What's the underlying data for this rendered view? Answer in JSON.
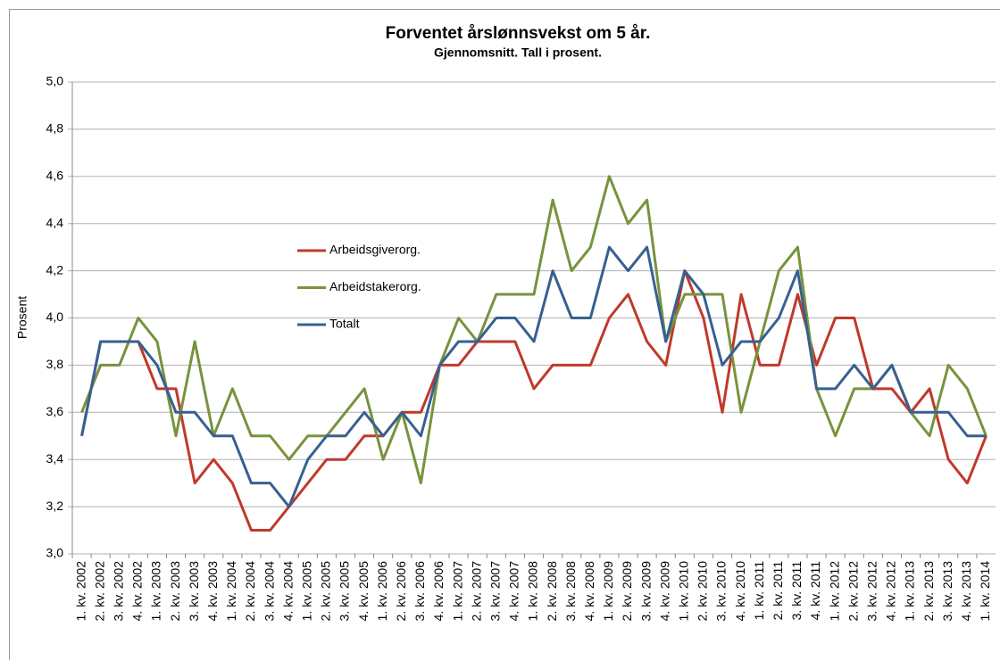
{
  "chart_data": {
    "type": "line",
    "title": "Forventet årslønnsvekst om 5 år.",
    "subtitle": "Gjennomsnitt.  Tall i prosent.",
    "y_label": "Prosent",
    "categories": [
      "1. kv. 2002",
      "2. kv. 2002",
      "3. kv. 2002",
      "4. kv. 2002",
      "1. kv. 2003",
      "2. kv. 2003",
      "3. kv. 2003",
      "4. kv. 2003",
      "1. kv. 2004",
      "2. kv. 2004",
      "3. kv. 2004",
      "4. kv. 2004",
      "1. kv. 2005",
      "2. kv. 2005",
      "3. kv. 2005",
      "4. kv. 2005",
      "1. kv. 2006",
      "2. kv. 2006",
      "3. kv. 2006",
      "4. kv. 2006",
      "1. kv. 2007",
      "2. kv. 2007",
      "3. kv. 2007",
      "4. kv. 2007",
      "1. kv. 2008",
      "2. kv. 2008",
      "3. kv. 2008",
      "4. kv. 2008",
      "1. kv. 2009",
      "2. kv. 2009",
      "3. kv. 2009",
      "4. kv. 2009",
      "1. kv. 2010",
      "2. kv. 2010",
      "3. kv. 2010",
      "4. kv. 2010",
      "1. kv. 2011",
      "2. kv. 2011",
      "3. kv. 2011",
      "4. kv. 2011",
      "1. kv. 2012",
      "2. kv. 2012",
      "3. kv. 2012",
      "4. kv. 2012",
      "1. kv. 2013",
      "2. kv. 2013",
      "3. kv. 2013",
      "4. kv. 2013",
      "1. kv. 2014"
    ],
    "series": [
      {
        "name": "Arbeidsgiverorg.",
        "color": "#c0392b",
        "values": [
          3.5,
          3.9,
          3.9,
          3.9,
          3.7,
          3.7,
          3.3,
          3.4,
          3.3,
          3.1,
          3.1,
          3.2,
          3.3,
          3.4,
          3.4,
          3.5,
          3.5,
          3.6,
          3.6,
          3.8,
          3.8,
          3.9,
          3.9,
          3.9,
          3.7,
          3.8,
          3.8,
          3.8,
          4.0,
          4.1,
          3.9,
          3.8,
          4.2,
          4.0,
          3.6,
          4.1,
          3.8,
          3.8,
          4.1,
          3.8,
          4.0,
          4.0,
          3.7,
          3.7,
          3.6,
          3.7,
          3.4,
          3.3,
          3.5
        ]
      },
      {
        "name": "Arbeidstakerorg.",
        "color": "#77933c",
        "values": [
          3.6,
          3.8,
          3.8,
          4.0,
          3.9,
          3.5,
          3.9,
          3.5,
          3.7,
          3.5,
          3.5,
          3.4,
          3.5,
          3.5,
          3.6,
          3.7,
          3.4,
          3.6,
          3.3,
          3.8,
          4.0,
          3.9,
          4.1,
          4.1,
          4.1,
          4.5,
          4.2,
          4.3,
          4.6,
          4.4,
          4.5,
          3.9,
          4.1,
          4.1,
          4.1,
          3.6,
          3.9,
          4.2,
          4.3,
          3.7,
          3.5,
          3.7,
          3.7,
          3.8,
          3.6,
          3.5,
          3.8,
          3.7,
          3.5
        ]
      },
      {
        "name": "Totalt",
        "color": "#376092",
        "values": [
          3.5,
          3.9,
          3.9,
          3.9,
          3.8,
          3.6,
          3.6,
          3.5,
          3.5,
          3.3,
          3.3,
          3.2,
          3.4,
          3.5,
          3.5,
          3.6,
          3.5,
          3.6,
          3.5,
          3.8,
          3.9,
          3.9,
          4.0,
          4.0,
          3.9,
          4.2,
          4.0,
          4.0,
          4.3,
          4.2,
          4.3,
          3.9,
          4.2,
          4.1,
          3.8,
          3.9,
          3.9,
          4.0,
          4.2,
          3.7,
          3.7,
          3.8,
          3.7,
          3.8,
          3.6,
          3.6,
          3.6,
          3.5,
          3.5
        ]
      }
    ],
    "ylim": [
      3.0,
      5.0
    ],
    "yticks": [
      {
        "value": 3.0,
        "label": "3,0"
      },
      {
        "value": 3.2,
        "label": "3,2"
      },
      {
        "value": 3.4,
        "label": "3,4"
      },
      {
        "value": 3.6,
        "label": "3,6"
      },
      {
        "value": 3.8,
        "label": "3,8"
      },
      {
        "value": 4.0,
        "label": "4,0"
      },
      {
        "value": 4.2,
        "label": "4,2"
      },
      {
        "value": 4.4,
        "label": "4,4"
      },
      {
        "value": 4.6,
        "label": "4,6"
      },
      {
        "value": 4.8,
        "label": "4,8"
      },
      {
        "value": 5.0,
        "label": "5,0"
      }
    ],
    "grid": true
  }
}
